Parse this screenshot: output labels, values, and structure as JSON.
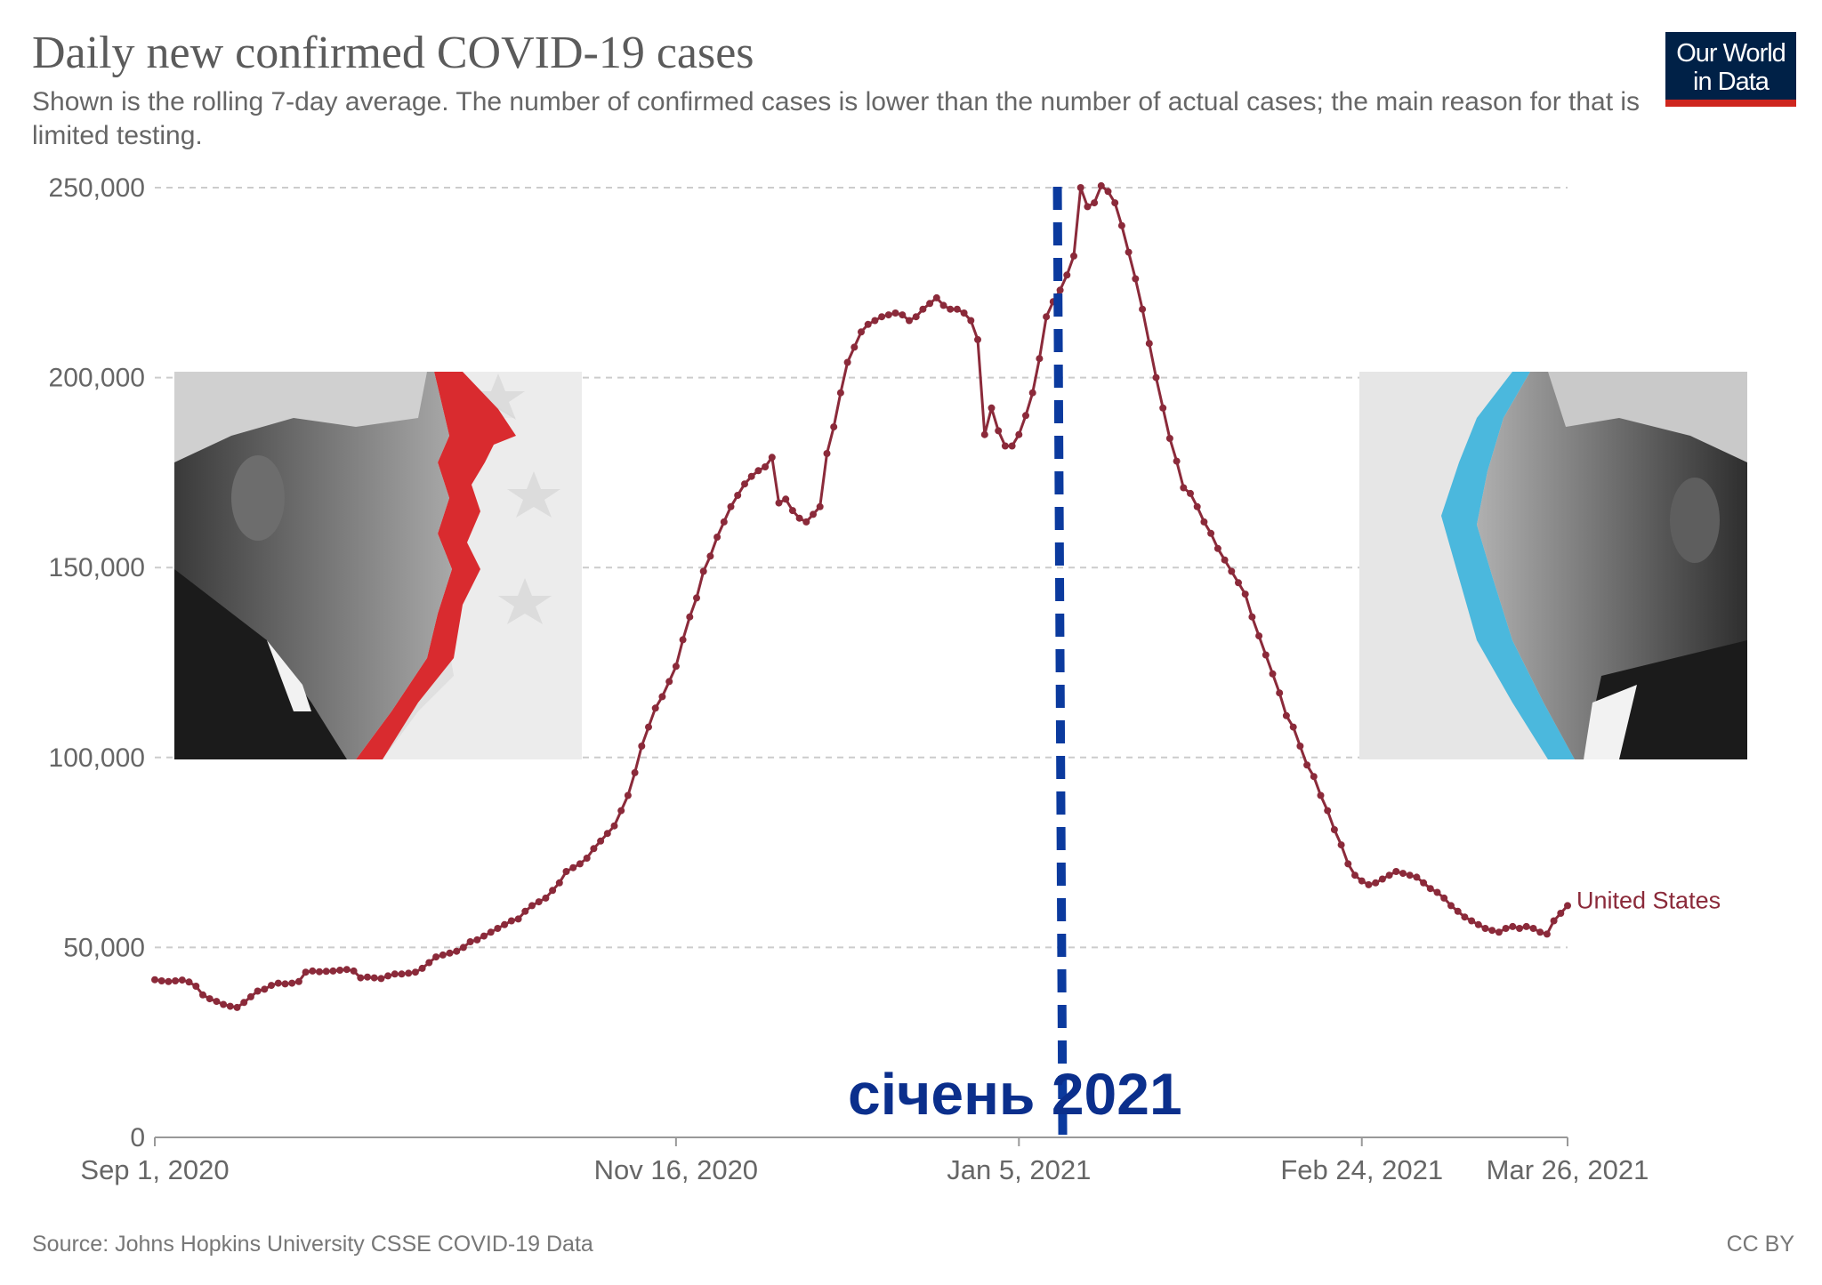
{
  "header": {
    "title": "Daily new confirmed COVID-19 cases",
    "subtitle": "Shown is the rolling 7-day average. The number of confirmed cases is lower than the number of actual cases; the main reason for that is limited testing."
  },
  "logo": {
    "line1": "Our World",
    "line2": "in Data"
  },
  "footer": {
    "source": "Source: Johns Hopkins University CSSE COVID-19 Data",
    "license": "CC BY"
  },
  "annotation": {
    "text": "січень 2021",
    "color": "#0b2f8c"
  },
  "colors": {
    "series": "#8b2a3a",
    "grid": "#cccccc",
    "axis_text": "#666666",
    "marker_line": "#0b3a9e",
    "trump_red": "#d92b2f",
    "biden_blue": "#4bb8dd"
  },
  "chart_data": {
    "type": "line",
    "title": "Daily new confirmed COVID-19 cases",
    "xlabel": "",
    "ylabel": "",
    "ylim": [
      0,
      250000
    ],
    "yticks": [
      0,
      50000,
      100000,
      150000,
      200000,
      250000
    ],
    "ytick_labels": [
      "0",
      "50,000",
      "100,000",
      "150,000",
      "200,000",
      "250,000"
    ],
    "xlim": [
      0,
      206
    ],
    "xticks": [
      0,
      76,
      126,
      176,
      206
    ],
    "xtick_labels": [
      "Sep 1, 2020",
      "Nov 16, 2020",
      "Jan 5, 2021",
      "Feb 24, 2021",
      "Mar 26, 2021"
    ],
    "grid": true,
    "vline_day": 132,
    "series": [
      {
        "name": "United States",
        "label": "United States",
        "x_start_day": 0,
        "values": [
          41500,
          41200,
          41000,
          41200,
          41400,
          40900,
          39800,
          37500,
          36500,
          35800,
          35000,
          34500,
          34200,
          35500,
          37000,
          38500,
          39000,
          40000,
          40600,
          40400,
          40600,
          41000,
          43500,
          43800,
          43600,
          43700,
          43800,
          44000,
          44200,
          43800,
          42000,
          42200,
          42000,
          41800,
          42500,
          43000,
          43000,
          43200,
          43500,
          44500,
          46000,
          47500,
          48000,
          48500,
          49000,
          50000,
          51500,
          52000,
          53000,
          54000,
          55000,
          56000,
          57000,
          57500,
          59500,
          61000,
          62000,
          63000,
          65000,
          67000,
          70000,
          71000,
          72000,
          73500,
          76000,
          78000,
          80000,
          82000,
          86000,
          90000,
          96000,
          103000,
          108000,
          113000,
          116000,
          120000,
          124000,
          131000,
          137000,
          142000,
          149000,
          153000,
          158000,
          162000,
          166000,
          169000,
          172000,
          174000,
          175500,
          176500,
          179000,
          167000,
          168000,
          165000,
          163000,
          162000,
          164000,
          166000,
          180000,
          187000,
          196000,
          204000,
          208000,
          212000,
          214000,
          215000,
          216000,
          216500,
          217000,
          216500,
          215000,
          216000,
          218000,
          219500,
          221000,
          219000,
          218000,
          218000,
          217000,
          215000,
          210000,
          185000,
          192000,
          186000,
          182000,
          182000,
          185000,
          190000,
          196000,
          205000,
          216000,
          220000,
          223000,
          227000,
          232000,
          250000,
          245000,
          246000,
          250500,
          249000,
          246000,
          240000,
          233000,
          226000,
          218000,
          209000,
          200000,
          192000,
          184000,
          178000,
          171000,
          169500,
          166000,
          162000,
          159000,
          155000,
          152000,
          149000,
          146000,
          143000,
          137000,
          132000,
          127000,
          122000,
          117000,
          111000,
          108000,
          103000,
          98000,
          95000,
          90000,
          86000,
          81000,
          77000,
          72000,
          69000,
          67500,
          66500,
          67000,
          68000,
          69000,
          70000,
          69500,
          69000,
          68500,
          67000,
          65500,
          64500,
          63000,
          61000,
          59500,
          58000,
          57000,
          56000,
          55000,
          54500,
          54000,
          55000,
          55500,
          55000,
          55500,
          55000,
          54000,
          53500,
          57000,
          59000,
          61000
        ]
      }
    ]
  }
}
